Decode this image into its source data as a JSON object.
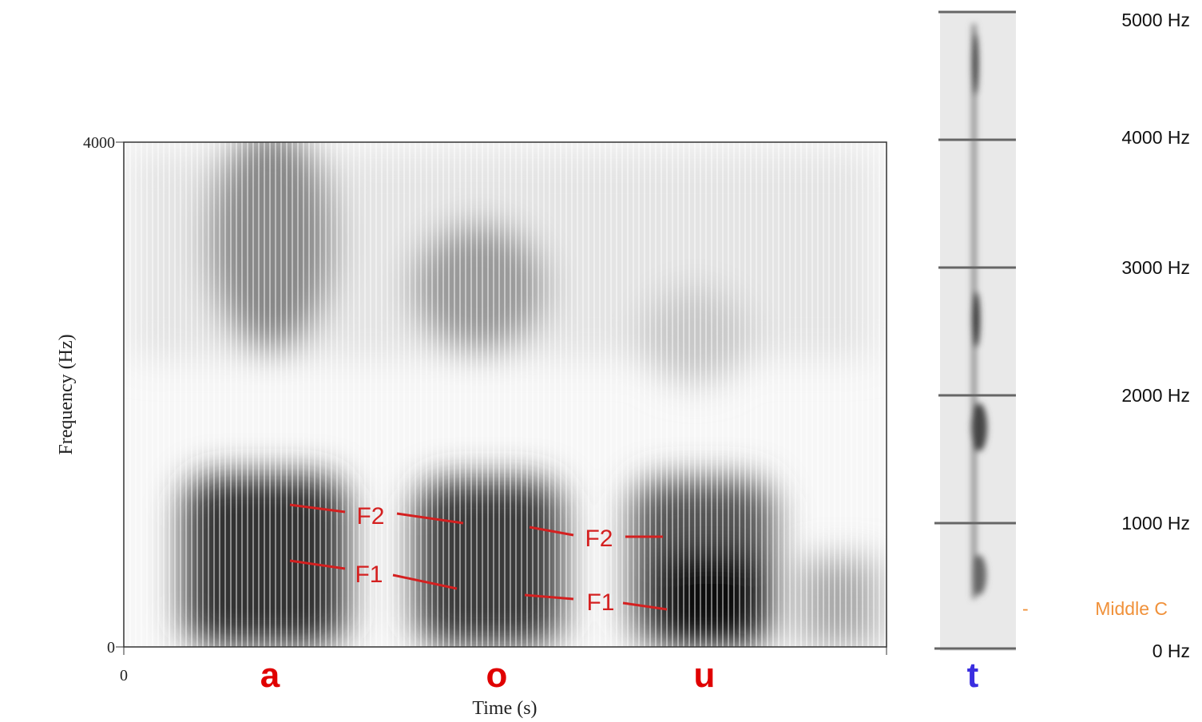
{
  "left_panel": {
    "y_axis": {
      "label": "Frequency (Hz)",
      "ticks": [
        "4000",
        "0"
      ]
    },
    "x_axis": {
      "label": "Time (s)",
      "ticks": [
        "0"
      ]
    },
    "annotations": [
      "F2",
      "F1",
      "F2",
      "F1"
    ]
  },
  "vowels": [
    "a",
    "o",
    "u"
  ],
  "right_panel": {
    "consonant": "t",
    "scale": [
      "5000 Hz",
      "4000 Hz",
      "3000 Hz",
      "2000 Hz",
      "1000 Hz",
      "0 Hz"
    ],
    "marker": {
      "dash": "-",
      "label": "Middle C"
    }
  }
}
